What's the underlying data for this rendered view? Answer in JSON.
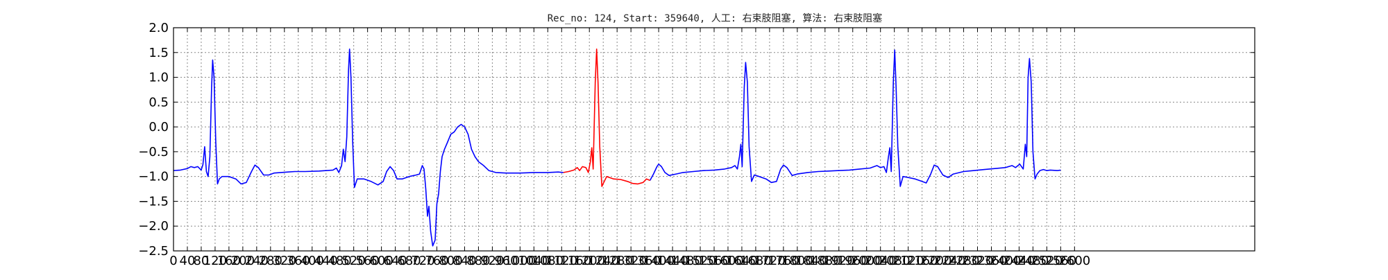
{
  "chart_data": {
    "type": "line",
    "title": "Rec_no: 124, Start: 359640, 人工: 右束肢阻塞, 算法: 右束肢阻塞",
    "xlabel": "",
    "ylabel": "",
    "xlim": [
      0,
      3120
    ],
    "ylim": [
      -2.5,
      2.0
    ],
    "grid": true,
    "x_tick_labels": [
      "0",
      "40",
      "80",
      "120",
      "160",
      "200",
      "240",
      "280",
      "320",
      "360",
      "400",
      "440",
      "480",
      "520",
      "560",
      "600",
      "640",
      "680",
      "720",
      "760",
      "800",
      "840",
      "880",
      "920",
      "960",
      "1000",
      "1040",
      "1080",
      "1120",
      "1160",
      "1200",
      "1240",
      "1280",
      "1320",
      "1360",
      "1400",
      "1440",
      "1480",
      "1520",
      "1560",
      "1600",
      "1640",
      "1680",
      "1720",
      "1760",
      "1800",
      "1840",
      "1880",
      "1920",
      "1960",
      "2000",
      "2040",
      "2080",
      "2120",
      "2160",
      "2200",
      "2240",
      "2280",
      "2320",
      "2360",
      "2400",
      "2440",
      "2480",
      "2520",
      "2560",
      "2600"
    ],
    "y_tick_labels": [
      "2.0",
      "1.5",
      "1.0",
      "0.5",
      "0.0",
      "−0.5",
      "−1.0",
      "−1.5",
      "−2.0",
      "−2.5"
    ],
    "series": [
      {
        "color": "#0000ff",
        "segments": [
          [
            [
              0,
              -0.88
            ],
            [
              20,
              -0.87
            ],
            [
              40,
              -0.84
            ],
            [
              50,
              -0.8
            ],
            [
              60,
              -0.82
            ],
            [
              70,
              -0.8
            ],
            [
              80,
              -0.87
            ],
            [
              85,
              -0.76
            ],
            [
              90,
              -0.4
            ],
            [
              95,
              -0.9
            ],
            [
              100,
              -1.0
            ],
            [
              105,
              -0.6
            ],
            [
              110,
              0.8
            ],
            [
              113,
              1.35
            ],
            [
              117,
              1.0
            ],
            [
              122,
              -0.3
            ],
            [
              127,
              -1.15
            ],
            [
              132,
              -1.05
            ],
            [
              140,
              -1.0
            ],
            [
              160,
              -1.0
            ],
            [
              180,
              -1.05
            ],
            [
              195,
              -1.15
            ],
            [
              210,
              -1.12
            ],
            [
              225,
              -0.9
            ],
            [
              235,
              -0.77
            ],
            [
              245,
              -0.82
            ],
            [
              260,
              -0.97
            ],
            [
              275,
              -0.97
            ],
            [
              290,
              -0.93
            ],
            [
              310,
              -0.92
            ],
            [
              330,
              -0.91
            ],
            [
              350,
              -0.9
            ],
            [
              380,
              -0.9
            ],
            [
              420,
              -0.89
            ],
            [
              460,
              -0.87
            ],
            [
              470,
              -0.83
            ],
            [
              477,
              -0.92
            ],
            [
              485,
              -0.78
            ],
            [
              490,
              -0.45
            ],
            [
              495,
              -0.7
            ],
            [
              500,
              -0.2
            ],
            [
              505,
              1.15
            ],
            [
              508,
              1.57
            ],
            [
              512,
              1.0
            ],
            [
              517,
              -0.3
            ],
            [
              522,
              -1.22
            ],
            [
              530,
              -1.05
            ],
            [
              550,
              -1.05
            ],
            [
              570,
              -1.1
            ],
            [
              590,
              -1.17
            ],
            [
              605,
              -1.1
            ],
            [
              615,
              -0.9
            ],
            [
              625,
              -0.8
            ],
            [
              635,
              -0.88
            ],
            [
              645,
              -1.05
            ],
            [
              660,
              -1.05
            ],
            [
              680,
              -1.0
            ],
            [
              700,
              -0.97
            ],
            [
              710,
              -0.95
            ],
            [
              718,
              -0.78
            ],
            [
              723,
              -0.85
            ],
            [
              728,
              -1.25
            ],
            [
              733,
              -1.8
            ],
            [
              737,
              -1.6
            ],
            [
              742,
              -2.1
            ],
            [
              748,
              -2.4
            ],
            [
              755,
              -2.28
            ],
            [
              760,
              -1.55
            ],
            [
              765,
              -1.35
            ],
            [
              770,
              -0.9
            ],
            [
              775,
              -0.6
            ],
            [
              782,
              -0.45
            ],
            [
              790,
              -0.32
            ],
            [
              800,
              -0.15
            ],
            [
              810,
              -0.1
            ],
            [
              820,
              0.0
            ],
            [
              830,
              0.05
            ],
            [
              840,
              0.0
            ],
            [
              850,
              -0.15
            ],
            [
              860,
              -0.45
            ],
            [
              870,
              -0.6
            ],
            [
              880,
              -0.7
            ],
            [
              895,
              -0.78
            ],
            [
              910,
              -0.88
            ],
            [
              930,
              -0.92
            ],
            [
              960,
              -0.93
            ],
            [
              1000,
              -0.93
            ],
            [
              1040,
              -0.92
            ],
            [
              1080,
              -0.92
            ],
            [
              1110,
              -0.91
            ],
            [
              1125,
              -0.92
            ]
          ],
          [
            [
              1375,
              -1.08
            ],
            [
              1385,
              -0.95
            ],
            [
              1395,
              -0.8
            ],
            [
              1400,
              -0.75
            ],
            [
              1408,
              -0.8
            ],
            [
              1418,
              -0.92
            ],
            [
              1430,
              -0.98
            ],
            [
              1450,
              -0.95
            ],
            [
              1470,
              -0.92
            ],
            [
              1500,
              -0.9
            ],
            [
              1530,
              -0.88
            ],
            [
              1560,
              -0.87
            ],
            [
              1590,
              -0.85
            ],
            [
              1610,
              -0.82
            ],
            [
              1620,
              -0.78
            ],
            [
              1627,
              -0.85
            ],
            [
              1633,
              -0.6
            ],
            [
              1637,
              -0.35
            ],
            [
              1641,
              -0.8
            ],
            [
              1647,
              0.8
            ],
            [
              1651,
              1.3
            ],
            [
              1656,
              0.9
            ],
            [
              1661,
              -0.4
            ],
            [
              1668,
              -1.1
            ],
            [
              1676,
              -0.97
            ],
            [
              1690,
              -1.0
            ],
            [
              1710,
              -1.05
            ],
            [
              1725,
              -1.12
            ],
            [
              1740,
              -1.1
            ],
            [
              1752,
              -0.85
            ],
            [
              1760,
              -0.77
            ],
            [
              1770,
              -0.82
            ],
            [
              1785,
              -0.98
            ],
            [
              1800,
              -0.95
            ],
            [
              1830,
              -0.92
            ],
            [
              1860,
              -0.9
            ],
            [
              1890,
              -0.89
            ],
            [
              1920,
              -0.88
            ],
            [
              1950,
              -0.87
            ],
            [
              1980,
              -0.85
            ],
            [
              2010,
              -0.83
            ],
            [
              2030,
              -0.78
            ],
            [
              2040,
              -0.82
            ],
            [
              2050,
              -0.8
            ],
            [
              2057,
              -0.92
            ],
            [
              2063,
              -0.6
            ],
            [
              2067,
              -0.42
            ],
            [
              2071,
              -0.9
            ],
            [
              2077,
              0.9
            ],
            [
              2081,
              1.55
            ],
            [
              2085,
              0.8
            ],
            [
              2090,
              -0.4
            ],
            [
              2097,
              -1.2
            ],
            [
              2105,
              -1.0
            ],
            [
              2120,
              -1.02
            ],
            [
              2140,
              -1.05
            ],
            [
              2160,
              -1.1
            ],
            [
              2172,
              -1.13
            ],
            [
              2185,
              -0.95
            ],
            [
              2195,
              -0.77
            ],
            [
              2205,
              -0.8
            ],
            [
              2220,
              -0.97
            ],
            [
              2235,
              -1.02
            ],
            [
              2250,
              -0.95
            ],
            [
              2280,
              -0.9
            ],
            [
              2310,
              -0.88
            ],
            [
              2340,
              -0.86
            ],
            [
              2370,
              -0.84
            ],
            [
              2400,
              -0.82
            ],
            [
              2420,
              -0.78
            ],
            [
              2430,
              -0.82
            ],
            [
              2442,
              -0.75
            ],
            [
              2452,
              -0.85
            ],
            [
              2458,
              -0.35
            ],
            [
              2462,
              -0.6
            ],
            [
              2466,
              1.0
            ],
            [
              2470,
              1.38
            ],
            [
              2475,
              0.9
            ],
            [
              2480,
              -0.5
            ],
            [
              2486,
              -1.05
            ],
            [
              2492,
              -0.95
            ],
            [
              2500,
              -0.88
            ],
            [
              2510,
              -0.86
            ],
            [
              2520,
              -0.88
            ],
            [
              2530,
              -0.87
            ],
            [
              2550,
              -0.88
            ],
            [
              2560,
              -0.87
            ]
          ]
        ]
      },
      {
        "color": "#ff0000",
        "segments": [
          [
            [
              1125,
              -0.92
            ],
            [
              1140,
              -0.9
            ],
            [
              1155,
              -0.87
            ],
            [
              1165,
              -0.82
            ],
            [
              1172,
              -0.88
            ],
            [
              1180,
              -0.8
            ],
            [
              1190,
              -0.82
            ],
            [
              1197,
              -0.92
            ],
            [
              1203,
              -0.7
            ],
            [
              1207,
              -0.42
            ],
            [
              1211,
              -0.85
            ],
            [
              1217,
              0.9
            ],
            [
              1221,
              1.57
            ],
            [
              1225,
              0.9
            ],
            [
              1230,
              -0.4
            ],
            [
              1236,
              -1.2
            ],
            [
              1243,
              -1.1
            ],
            [
              1250,
              -1.0
            ],
            [
              1270,
              -1.05
            ],
            [
              1290,
              -1.06
            ],
            [
              1310,
              -1.1
            ],
            [
              1325,
              -1.14
            ],
            [
              1340,
              -1.15
            ],
            [
              1355,
              -1.12
            ],
            [
              1365,
              -1.05
            ],
            [
              1375,
              -1.08
            ]
          ]
        ]
      }
    ]
  }
}
